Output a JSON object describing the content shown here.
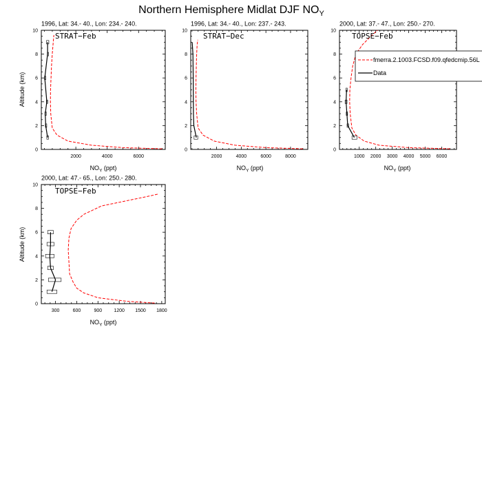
{
  "figure": {
    "title_main": "Northern Hemisphere Midlat DJF NO",
    "title_sub": "Y"
  },
  "legend": {
    "model_label": "fmerra.2.1003.FCSD.f09.qfedcmip.56L",
    "data_label": "Data",
    "model_color": "#ff0000",
    "data_color": "#000000"
  },
  "chart_data": [
    {
      "type": "line",
      "header": "1996, Lat: 34.- 40., Lon: 234.- 240.",
      "campaign": "STRAT−Feb",
      "xlabel_main": "NO",
      "xlabel_sub": "Y",
      "xlabel_unit": " (ppt)",
      "ylabel": "Altitude (km)",
      "xlim": [
        -200,
        7700
      ],
      "ylim": [
        0,
        10
      ],
      "xticks": [
        2000,
        4000,
        6000
      ],
      "xticklabels": [
        "2000",
        "4000",
        "6000"
      ],
      "yticks": [
        0,
        2,
        4,
        6,
        8,
        10
      ],
      "yticklabels": [
        "0",
        "2",
        "4",
        "6",
        "8",
        "10"
      ],
      "model": {
        "name": "fmerra.2.1003.FCSD.f09.qfedcmip.56L",
        "x": [
          7500,
          5000,
          3000,
          1500,
          800,
          500,
          400,
          380,
          390,
          420,
          450,
          500,
          560,
          600
        ],
        "y": [
          0.05,
          0.15,
          0.35,
          0.7,
          1.2,
          1.8,
          3,
          4,
          5,
          6,
          7,
          8,
          9,
          9.6
        ]
      },
      "data": {
        "name": "Data",
        "x": [
          200,
          80,
          50,
          150,
          20,
          200,
          200
        ],
        "y": [
          1,
          2,
          3,
          4,
          6,
          8,
          9
        ],
        "boxes": [
          [
            1,
            150,
            260
          ],
          [
            2,
            60,
            100
          ],
          [
            3,
            30,
            80
          ],
          [
            4,
            120,
            180
          ],
          [
            6,
            0,
            60
          ],
          [
            8,
            180,
            230
          ],
          [
            9,
            130,
            280
          ]
        ]
      }
    },
    {
      "type": "line",
      "header": "1996, Lat: 34.- 40., Lon: 237.- 243.",
      "campaign": "STRAT−Dec",
      "xlabel_main": "NO",
      "xlabel_sub": "Y",
      "xlabel_unit": " (ppt)",
      "ylabel": "",
      "xlim": [
        -100,
        9400
      ],
      "ylim": [
        0,
        10
      ],
      "xticks": [
        2000,
        4000,
        6000,
        8000
      ],
      "xticklabels": [
        "2000",
        "4000",
        "6000",
        "8000"
      ],
      "yticks": [
        0,
        2,
        4,
        6,
        8,
        10
      ],
      "yticklabels": [
        "0",
        "2",
        "4",
        "6",
        "8",
        "10"
      ],
      "model": {
        "name": "fmerra.2.1003.FCSD.f09.qfedcmip.56L",
        "x": [
          9000,
          6000,
          3500,
          1800,
          900,
          500,
          380,
          330,
          320,
          330,
          350,
          380,
          420,
          470
        ],
        "y": [
          0.05,
          0.15,
          0.35,
          0.7,
          1.2,
          1.8,
          3,
          4,
          5,
          6,
          7,
          8,
          8.8,
          9.2
        ]
      },
      "data": {
        "name": "Data",
        "x": [
          350,
          150,
          120,
          110,
          100,
          90,
          80,
          20
        ],
        "y": [
          1,
          2,
          3,
          4,
          6,
          7,
          8,
          9
        ],
        "boxes": [
          [
            1,
            170,
            470
          ]
        ]
      }
    },
    {
      "type": "line",
      "header": "2000, Lat: 37.- 47., Lon: 250.- 270.",
      "campaign": "TOPSE−Feb",
      "xlabel_main": "NO",
      "xlabel_sub": "Y",
      "xlabel_unit": " (ppt)",
      "ylabel": "",
      "xlim": [
        -200,
        6900
      ],
      "ylim": [
        0,
        10
      ],
      "xticks": [
        1000,
        2000,
        3000,
        4000,
        5000,
        6000
      ],
      "xticklabels": [
        "1000",
        "2000",
        "3000",
        "4000",
        "5000",
        "6000"
      ],
      "yticks": [
        0,
        2,
        4,
        6,
        8,
        10
      ],
      "yticklabels": [
        "0",
        "2",
        "4",
        "6",
        "8",
        "10"
      ],
      "model": {
        "name": "fmerra.2.1003.FCSD.f09.qfedcmip.56L",
        "x": [
          6500,
          4000,
          2200,
          1300,
          800,
          550,
          450,
          420,
          430,
          500,
          600,
          800,
          1200,
          1700,
          2100
        ],
        "y": [
          0.05,
          0.15,
          0.35,
          0.7,
          1.2,
          1.8,
          3,
          4,
          5,
          6,
          7,
          8,
          8.8,
          9.5,
          10
        ]
      },
      "data": {
        "name": "Data",
        "x": [
          700,
          300,
          250,
          200,
          230
        ],
        "y": [
          1,
          2,
          3,
          4,
          5
        ],
        "boxes": [
          [
            1,
            560,
            860
          ],
          [
            2,
            260,
            360
          ],
          [
            3,
            210,
            290
          ],
          [
            4,
            140,
            260
          ],
          [
            5,
            190,
            270
          ]
        ]
      }
    },
    {
      "type": "line",
      "header": "2000, Lat: 47.- 65., Lon: 250.- 280.",
      "campaign": "TOPSE−Feb",
      "xlabel_main": "NO",
      "xlabel_sub": "Y",
      "xlabel_unit": " (ppt)",
      "ylabel": "Altitude (km)",
      "xlim": [
        100,
        1850
      ],
      "ylim": [
        0,
        10
      ],
      "xticks": [
        300,
        600,
        900,
        1200,
        1500,
        1800
      ],
      "xticklabels": [
        "300",
        "600",
        "900",
        "1200",
        "1500",
        "1800"
      ],
      "yticks": [
        0,
        2,
        4,
        6,
        8,
        10
      ],
      "yticklabels": [
        "0",
        "2",
        "4",
        "6",
        "8",
        "10"
      ],
      "model": {
        "name": "fmerra.2.1003.FCSD.f09.qfedcmip.56L",
        "x": [
          1700,
          1300,
          900,
          700,
          600,
          550,
          500,
          490,
          480,
          490,
          520,
          600,
          700,
          950,
          1600,
          1750
        ],
        "y": [
          0.05,
          0.2,
          0.5,
          0.9,
          1.3,
          1.8,
          2.5,
          3.5,
          4.5,
          5.5,
          6.3,
          7,
          7.5,
          8.2,
          9,
          9.2
        ]
      },
      "data": {
        "name": "Data",
        "x": [
          250,
          300,
          230,
          220,
          230,
          230
        ],
        "y": [
          1,
          2,
          3,
          4,
          5,
          6
        ],
        "boxes": [
          [
            1,
            180,
            320
          ],
          [
            2,
            200,
            380
          ],
          [
            3,
            190,
            270
          ],
          [
            4,
            160,
            280
          ],
          [
            5,
            180,
            280
          ],
          [
            6,
            190,
            270
          ]
        ]
      }
    }
  ]
}
